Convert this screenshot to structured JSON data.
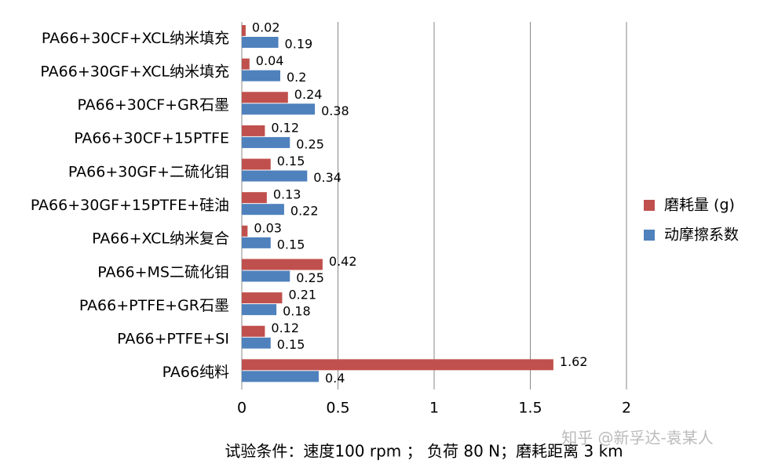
{
  "chart_data": {
    "type": "bar",
    "orientation": "horizontal",
    "categories": [
      "PA66+30CF+XCL纳米填充",
      "PA66+30GF+XCL纳米填充",
      "PA66+30CF+GR石墨",
      "PA66+30CF+15PTFE",
      "PA66+30GF+二硫化钼",
      "PA66+30GF+15PTFE+硅油",
      "PA66+XCL纳米复合",
      "PA66+MS二硫化钼",
      "PA66+PTFE+GR石墨",
      "PA66+PTFE+SI",
      "PA66纯料"
    ],
    "series": [
      {
        "name": "磨耗量 (g)",
        "color": "#c0504d",
        "values": [
          0.02,
          0.04,
          0.24,
          0.12,
          0.15,
          0.13,
          0.03,
          0.42,
          0.21,
          0.12,
          1.62
        ]
      },
      {
        "name": "动摩擦系数",
        "color": "#4f81bd",
        "values": [
          0.19,
          0.2,
          0.38,
          0.25,
          0.34,
          0.22,
          0.15,
          0.25,
          0.18,
          0.15,
          0.4
        ]
      }
    ],
    "xlim": [
      0,
      2
    ],
    "xticks": [
      0,
      0.5,
      1,
      1.5,
      2
    ],
    "grid": true,
    "legend": "right",
    "xlabel": "试验条件：速度100  rpm ；  负荷 80 N；磨耗距离 3 km",
    "watermark": "知乎 @新孚达-袁某人"
  }
}
